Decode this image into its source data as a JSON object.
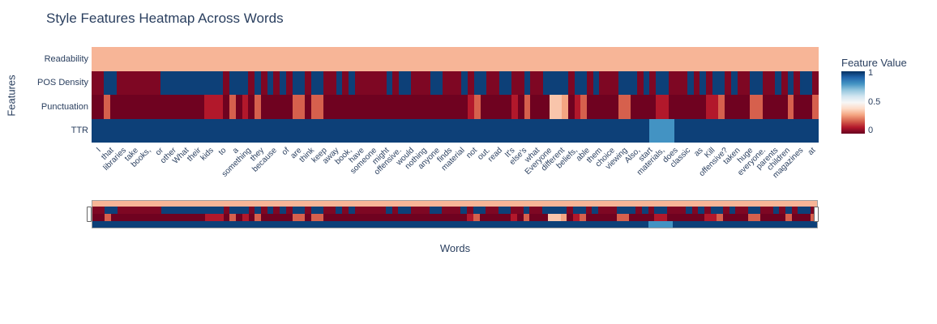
{
  "chart_data": {
    "type": "heatmap",
    "title": "Style Features Heatmap Across Words",
    "xlabel": "Words",
    "ylabel": "Features",
    "colorscale": "RdBu",
    "value_range": [
      0,
      1
    ],
    "n_columns": 116,
    "tick_note": "x tick labels are shown on every 2nd column",
    "colorbar": {
      "title": "Feature Value",
      "ticks": [
        "1",
        "0.5",
        "0"
      ],
      "tick_values": [
        1,
        0.5,
        0
      ]
    },
    "colors": {
      "dark_red": "#67001f",
      "crimson": "#b2182b",
      "salmon": "#d6604d",
      "peach": "#f4a582",
      "white_mid": "#f7f7f7",
      "light_blue": "#4393c3",
      "dark_blue": "#053061",
      "font": "#2a3f5f"
    },
    "x_tick_labels": [
      "I",
      "that",
      "libraries",
      "take",
      "books,",
      "or",
      "other",
      "What",
      "their",
      "kids",
      "to",
      "a",
      "something",
      "they",
      "because",
      "of",
      "are",
      "think",
      "keep",
      "away",
      "book,",
      "have",
      "someone",
      "might",
      "offensive.",
      "would",
      "nothing",
      "anyone",
      "finds",
      "material",
      "not",
      "out.",
      "read",
      "It's",
      "else's",
      "what",
      "Everyone",
      "different",
      "beliefs,",
      "able",
      "them",
      "choice",
      "viewing",
      "Also,",
      "start",
      "materials,",
      "does",
      "classic",
      "as",
      "Kill",
      "offensive?",
      "taken",
      "huge",
      "everyone.",
      "parents",
      "children",
      "magazines",
      "at"
    ],
    "rows": [
      "Readability",
      "POS Density",
      "Punctuation",
      "TTR"
    ],
    "values": {
      "Readability": [
        0.33,
        0.33,
        0.33,
        0.33,
        0.33,
        0.33,
        0.33,
        0.33,
        0.33,
        0.33,
        0.33,
        0.33,
        0.33,
        0.33,
        0.33,
        0.33,
        0.33,
        0.33,
        0.33,
        0.33,
        0.33,
        0.33,
        0.33,
        0.33,
        0.33,
        0.33,
        0.33,
        0.33,
        0.33,
        0.33,
        0.33,
        0.33,
        0.33,
        0.33,
        0.33,
        0.33,
        0.33,
        0.33,
        0.33,
        0.33,
        0.33,
        0.33,
        0.33,
        0.33,
        0.33,
        0.33,
        0.33,
        0.33,
        0.33,
        0.33,
        0.33,
        0.33,
        0.33,
        0.33,
        0.33,
        0.33,
        0.33,
        0.33,
        0.33,
        0.33,
        0.33,
        0.33,
        0.33,
        0.33,
        0.33,
        0.33,
        0.33,
        0.33,
        0.33,
        0.33,
        0.33,
        0.33,
        0.33,
        0.33,
        0.33,
        0.33,
        0.33,
        0.33,
        0.33,
        0.33,
        0.33,
        0.33,
        0.33,
        0.33,
        0.33,
        0.33,
        0.33,
        0.33,
        0.33,
        0.33,
        0.33,
        0.33,
        0.33,
        0.33,
        0.33,
        0.33,
        0.33,
        0.33,
        0.33,
        0.33,
        0.33,
        0.33,
        0.33,
        0.33,
        0.33,
        0.33,
        0.33,
        0.33,
        0.33,
        0.33,
        0.33,
        0.33,
        0.33,
        0.33,
        0.33,
        0.33
      ],
      "POS Density": [
        0.03,
        0.03,
        0.97,
        0.97,
        0.03,
        0.03,
        0.03,
        0.03,
        0.03,
        0.03,
        0.03,
        0.97,
        0.97,
        0.97,
        0.97,
        0.97,
        0.97,
        0.97,
        0.97,
        0.97,
        0.97,
        0.03,
        0.97,
        0.97,
        0.97,
        0.03,
        0.97,
        0.03,
        0.97,
        0.03,
        0.97,
        0.03,
        0.97,
        0.97,
        0.03,
        0.97,
        0.97,
        0.03,
        0.03,
        0.97,
        0.03,
        0.97,
        0.03,
        0.03,
        0.03,
        0.03,
        0.03,
        0.97,
        0.03,
        0.97,
        0.97,
        0.03,
        0.03,
        0.03,
        0.97,
        0.97,
        0.03,
        0.03,
        0.03,
        0.97,
        0.03,
        0.97,
        0.97,
        0.03,
        0.03,
        0.97,
        0.97,
        0.03,
        0.03,
        0.97,
        0.03,
        0.03,
        0.97,
        0.97,
        0.97,
        0.97,
        0.03,
        0.97,
        0.97,
        0.03,
        0.97,
        0.03,
        0.03,
        0.03,
        0.97,
        0.97,
        0.97,
        0.03,
        0.97,
        0.03,
        0.97,
        0.97,
        0.03,
        0.03,
        0.03,
        0.97,
        0.03,
        0.97,
        0.03,
        0.97,
        0.97,
        0.03,
        0.97,
        0.03,
        0.03,
        0.97,
        0.97,
        0.03,
        0.03,
        0.97,
        0.03,
        0.97,
        0.03,
        0.97,
        0.97,
        0.03
      ],
      "Punctuation": [
        0.01,
        0.01,
        0.2,
        0.01,
        0.01,
        0.01,
        0.01,
        0.01,
        0.01,
        0.01,
        0.01,
        0.01,
        0.01,
        0.01,
        0.01,
        0.01,
        0.01,
        0.01,
        0.1,
        0.1,
        0.1,
        0.01,
        0.2,
        0.01,
        0.1,
        0.01,
        0.2,
        0.01,
        0.01,
        0.01,
        0.01,
        0.01,
        0.2,
        0.2,
        0.01,
        0.2,
        0.2,
        0.01,
        0.01,
        0.01,
        0.01,
        0.01,
        0.01,
        0.01,
        0.01,
        0.01,
        0.01,
        0.01,
        0.01,
        0.01,
        0.01,
        0.01,
        0.01,
        0.01,
        0.01,
        0.01,
        0.01,
        0.01,
        0.01,
        0.01,
        0.1,
        0.2,
        0.01,
        0.01,
        0.01,
        0.01,
        0.01,
        0.1,
        0.01,
        0.2,
        0.01,
        0.01,
        0.01,
        0.36,
        0.36,
        0.3,
        0.01,
        0.1,
        0.2,
        0.01,
        0.01,
        0.01,
        0.01,
        0.01,
        0.2,
        0.2,
        0.01,
        0.01,
        0.01,
        0.01,
        0.1,
        0.1,
        0.01,
        0.01,
        0.01,
        0.01,
        0.01,
        0.01,
        0.1,
        0.1,
        0.2,
        0.01,
        0.01,
        0.01,
        0.01,
        0.2,
        0.2,
        0.01,
        0.01,
        0.01,
        0.01,
        0.2,
        0.01,
        0.01,
        0.01,
        0.2
      ],
      "TTR": [
        0.97,
        0.97,
        0.97,
        0.97,
        0.97,
        0.97,
        0.97,
        0.97,
        0.97,
        0.97,
        0.97,
        0.97,
        0.97,
        0.97,
        0.97,
        0.97,
        0.97,
        0.97,
        0.97,
        0.97,
        0.97,
        0.97,
        0.97,
        0.97,
        0.97,
        0.97,
        0.97,
        0.97,
        0.97,
        0.97,
        0.97,
        0.97,
        0.97,
        0.97,
        0.97,
        0.97,
        0.97,
        0.97,
        0.97,
        0.97,
        0.97,
        0.97,
        0.97,
        0.97,
        0.97,
        0.97,
        0.97,
        0.97,
        0.97,
        0.97,
        0.97,
        0.97,
        0.97,
        0.97,
        0.97,
        0.97,
        0.97,
        0.97,
        0.97,
        0.97,
        0.97,
        0.97,
        0.97,
        0.97,
        0.97,
        0.97,
        0.97,
        0.97,
        0.97,
        0.97,
        0.97,
        0.97,
        0.97,
        0.97,
        0.97,
        0.97,
        0.97,
        0.97,
        0.97,
        0.97,
        0.97,
        0.97,
        0.97,
        0.97,
        0.97,
        0.97,
        0.97,
        0.97,
        0.97,
        0.8,
        0.8,
        0.8,
        0.8,
        0.97,
        0.97,
        0.97,
        0.97,
        0.97,
        0.97,
        0.97,
        0.97,
        0.97,
        0.97,
        0.97,
        0.97,
        0.97,
        0.97,
        0.97,
        0.97,
        0.97,
        0.97,
        0.97,
        0.97,
        0.97,
        0.97,
        0.97
      ]
    },
    "rangeslider": {
      "visible": true,
      "range": "full"
    }
  }
}
